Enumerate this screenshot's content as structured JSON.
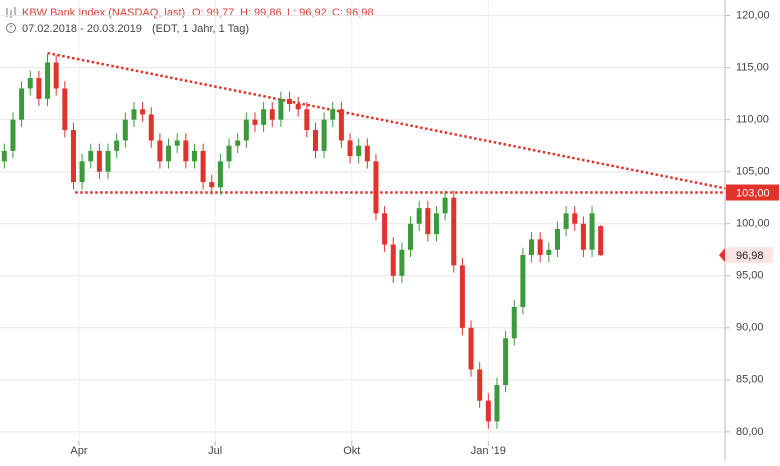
{
  "chart_data": {
    "type": "candlestick",
    "title": "KBW Bank Index (NASDAQ, last)",
    "ohlc_header": [
      "O: 99,77",
      "H: 99,86",
      "L: 96,92",
      "C: 96,98"
    ],
    "subtitle": "07.02.2018 - 20.03.2019",
    "subtitle_note": "(EDT, 1 Jahr, 1 Tag)",
    "categories": [
      null,
      null,
      null,
      null,
      null,
      null,
      null,
      null,
      null,
      null,
      null,
      null,
      null,
      null,
      null,
      null,
      null,
      null,
      null,
      null,
      null,
      null,
      null,
      null,
      null,
      null,
      null,
      null,
      null,
      null,
      null,
      null,
      null,
      null,
      null,
      null,
      null,
      null,
      null,
      null,
      null,
      null,
      null,
      null,
      null,
      null,
      null,
      null,
      null,
      null,
      null,
      null,
      null,
      null,
      null,
      null,
      null,
      null,
      null,
      null,
      null,
      null,
      null,
      null,
      null,
      null,
      null,
      null,
      null,
      null
    ],
    "open": [
      106,
      107,
      110,
      113,
      114,
      112,
      115.5,
      113,
      109,
      104,
      106,
      107,
      105,
      107,
      108,
      110,
      111,
      110.5,
      108,
      106,
      107.5,
      108,
      106,
      107,
      104,
      103.5,
      106,
      107.5,
      108,
      110,
      109.5,
      111,
      110,
      112,
      111.5,
      111,
      109,
      107,
      110,
      111,
      108,
      106.5,
      107.5,
      106,
      101,
      98,
      95,
      97.5,
      100,
      101.5,
      99,
      101,
      102.5,
      96,
      90,
      86,
      83,
      81,
      84.5,
      89,
      92,
      97,
      98.5,
      97,
      97.5,
      99.5,
      101,
      100,
      97.5,
      99.77
    ],
    "high": [
      107.7,
      110.7,
      113.7,
      114.7,
      114.7,
      116.3,
      116.2,
      113.7,
      109.7,
      106.7,
      107.7,
      107.7,
      107.7,
      108.7,
      110.7,
      111.7,
      111.7,
      111.2,
      108.7,
      108.2,
      108.7,
      108.7,
      107.7,
      107.7,
      104.7,
      106.7,
      108.2,
      108.7,
      110.7,
      110.7,
      111.7,
      111.7,
      112.7,
      112.7,
      112.2,
      111.7,
      109.7,
      110.7,
      111.7,
      111.7,
      108.7,
      108.2,
      108.2,
      106.7,
      101.7,
      98.7,
      98.2,
      100.7,
      102.2,
      102.2,
      101.7,
      103.2,
      103.2,
      96.7,
      90.7,
      86.7,
      83.7,
      85.2,
      89.7,
      92.7,
      97.7,
      99.2,
      99.2,
      98.2,
      100.2,
      101.7,
      101.7,
      100.7,
      101.7,
      99.86
    ],
    "low": [
      105.3,
      106.3,
      109.3,
      112.3,
      111.3,
      111.3,
      112.3,
      108.3,
      103.3,
      103.3,
      105.3,
      104.3,
      104.3,
      106.3,
      107.3,
      109.3,
      109.8,
      107.3,
      105.3,
      105.3,
      106.8,
      105.3,
      105.3,
      103.3,
      102.8,
      102.8,
      105.3,
      106.8,
      107.3,
      108.8,
      108.8,
      109.3,
      109.3,
      110.8,
      110.3,
      108.3,
      106.3,
      106.3,
      109.3,
      107.3,
      105.8,
      105.8,
      105.3,
      100.3,
      97.3,
      94.3,
      94.3,
      96.8,
      99.3,
      98.3,
      98.3,
      100.3,
      95.3,
      89.3,
      85.3,
      82.3,
      80.3,
      80.3,
      83.8,
      88.3,
      91.3,
      96.3,
      96.3,
      96.3,
      96.8,
      98.8,
      99.3,
      96.8,
      96.8,
      96.92
    ],
    "close": [
      107,
      110,
      113,
      114,
      112,
      115.5,
      113,
      109,
      104,
      106,
      107,
      105,
      107,
      108,
      110,
      111,
      110.5,
      108,
      106,
      107.5,
      108,
      106,
      107,
      104,
      103.5,
      106,
      107.5,
      108,
      110,
      109.5,
      111,
      110,
      112,
      111.5,
      111,
      109,
      107,
      110,
      111,
      108,
      106.5,
      107.5,
      106,
      101,
      98,
      95,
      97.5,
      100,
      101.5,
      99,
      101,
      102.5,
      96,
      90,
      86,
      83,
      81,
      84.5,
      89,
      92,
      97,
      98.5,
      97,
      97.5,
      99.5,
      101,
      100,
      97.5,
      101,
      96.98
    ],
    "value_labels": [
      null,
      null,
      null,
      null,
      null,
      null,
      null,
      null,
      null,
      null,
      null,
      null,
      null,
      null,
      null,
      null,
      null,
      null,
      null,
      null,
      null,
      null,
      null,
      null,
      null,
      null,
      null,
      null,
      null,
      null,
      null,
      null,
      null,
      null,
      null,
      null,
      null,
      null,
      null,
      null,
      null,
      null,
      null,
      null,
      null,
      null,
      null,
      null,
      null,
      null,
      null,
      null,
      null,
      null,
      null,
      null,
      null,
      null,
      null,
      null,
      null,
      null,
      null,
      null,
      null,
      null,
      null,
      null,
      null,
      "96,98"
    ],
    "up_color": "#3c9a3c",
    "down_color": "#e0332c",
    "ylim": [
      77.2,
      121.5
    ],
    "yticks": [
      {
        "value": 80,
        "label": "80,00"
      },
      {
        "value": 85,
        "label": "85,00"
      },
      {
        "value": 90,
        "label": "90,00"
      },
      {
        "value": 95,
        "label": "95,00"
      },
      {
        "value": 100,
        "label": "100,00"
      },
      {
        "value": 105,
        "label": "105,00"
      },
      {
        "value": 110,
        "label": "110,00"
      },
      {
        "value": 115,
        "label": "115,00"
      },
      {
        "value": 120,
        "label": "120,00"
      }
    ],
    "xticks": [
      {
        "value": 8.64,
        "label": "Apr"
      },
      {
        "value": 24.4,
        "label": "Jul"
      },
      {
        "value": 40.2,
        "label": "Okt"
      },
      {
        "value": 56.0,
        "label": "Jan '19"
      }
    ],
    "grid": true,
    "trendline": {
      "from": {
        "x": 5,
        "y": 116.4
      },
      "to": {
        "x": 83.4,
        "y": 103.4
      },
      "color": "#e0332c"
    },
    "level": {
      "value": 103,
      "label": "103,00",
      "from_x": 8.2,
      "color": "#e0332c"
    }
  }
}
